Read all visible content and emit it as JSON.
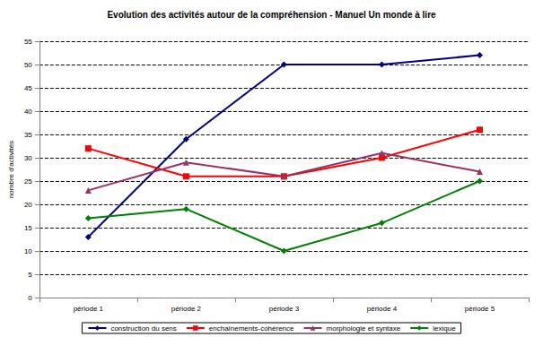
{
  "chart_data": {
    "type": "line",
    "title": "Evolution des activités autour de la compréhension - Manuel Un monde à lire",
    "y_label": "nombre d'activités",
    "categories": [
      "période 1",
      "période 2",
      "période 3",
      "période 4",
      "période 5"
    ],
    "series": [
      {
        "name": "construction du sens",
        "color": "#000080",
        "marker": "diamond",
        "line_style": "solid",
        "values": [
          13,
          34,
          50,
          50,
          52
        ]
      },
      {
        "name": "enchaînements-cohérence",
        "color": "#ff0000",
        "marker": "square",
        "line_style": "solid",
        "values": [
          32,
          26,
          26,
          30,
          36
        ]
      },
      {
        "name": "morphologie et syntaxe",
        "color": "#993366",
        "marker": "triangle",
        "line_style": "solid",
        "values": [
          23,
          29,
          26,
          31,
          27
        ]
      },
      {
        "name": "lexique",
        "color": "#008000",
        "marker": "diamond",
        "line_style": "solid",
        "values": [
          17,
          19,
          10,
          16,
          25
        ]
      }
    ],
    "ylim": [
      0,
      55
    ],
    "yticks": [
      0,
      5,
      10,
      15,
      20,
      25,
      30,
      35,
      40,
      45,
      50,
      55
    ],
    "grid": true,
    "legend": "bottom"
  }
}
